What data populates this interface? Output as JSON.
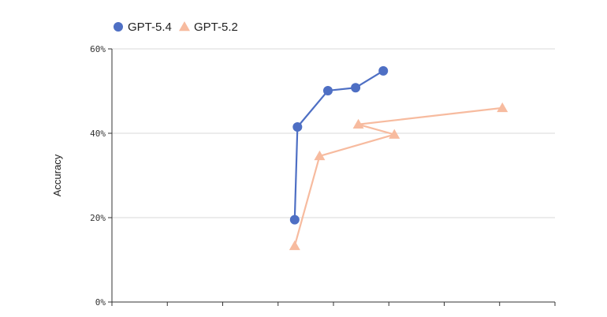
{
  "chart_data": {
    "type": "line",
    "title": "",
    "xlabel": "",
    "ylabel": "Accuracy",
    "ylim": [
      0,
      60
    ],
    "y_ticks": [
      "0%",
      "20%",
      "40%",
      "60%"
    ],
    "x_ticks_labeled": false,
    "grid": "horizontal",
    "legend_position": "top-left",
    "series": [
      {
        "name": "GPT-5.4",
        "color": "#4e6fc4",
        "marker": "circle",
        "points": [
          {
            "x": 3.3,
            "y": 19.5
          },
          {
            "x": 3.35,
            "y": 41.5
          },
          {
            "x": 3.9,
            "y": 50.1
          },
          {
            "x": 4.4,
            "y": 50.8
          },
          {
            "x": 4.9,
            "y": 54.8
          }
        ]
      },
      {
        "name": "GPT-5.2",
        "color": "#f7bb9f",
        "marker": "triangle",
        "points": [
          {
            "x": 3.3,
            "y": 13.3
          },
          {
            "x": 3.75,
            "y": 34.6
          },
          {
            "x": 5.1,
            "y": 39.7
          },
          {
            "x": 4.45,
            "y": 42.1
          },
          {
            "x": 7.05,
            "y": 46.0
          }
        ]
      }
    ]
  }
}
